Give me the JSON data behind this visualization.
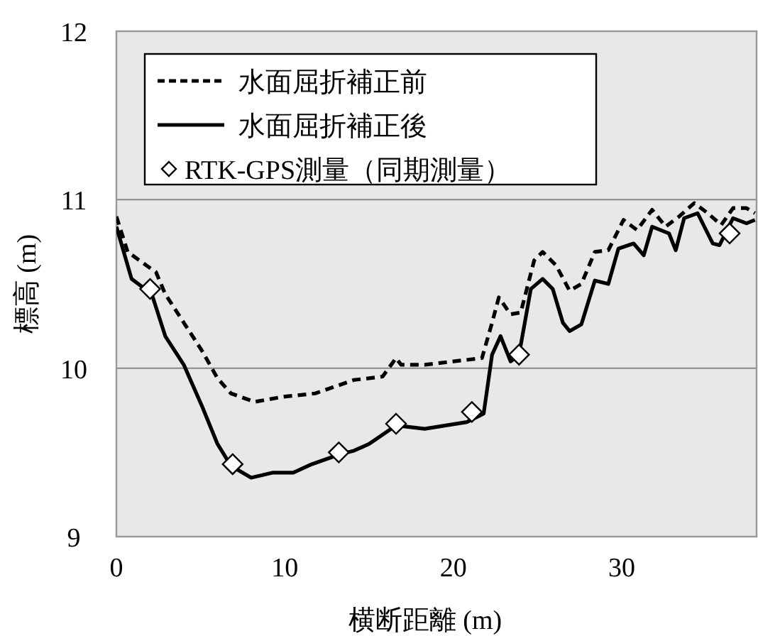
{
  "chart_data": {
    "type": "line",
    "xlabel": "横断距離 (m)",
    "ylabel": "標高 (m)",
    "xlim": [
      0,
      38
    ],
    "ylim": [
      9,
      12
    ],
    "xticks": [
      0,
      10,
      20,
      30
    ],
    "yticks": [
      9,
      10,
      11,
      12
    ],
    "grid": "y",
    "legend": "top left",
    "series": [
      {
        "name": "水面屈折補正前",
        "color": "#000000",
        "line_style": "dashed",
        "marker": "none",
        "x": [
          0,
          0.67,
          1.5,
          2.35,
          2.9,
          4.0,
          5.1,
          6.0,
          6.8,
          8.2,
          9.9,
          11.8,
          14.1,
          15.0,
          15.8,
          16.6,
          16.9,
          18.3,
          20.0,
          21.7,
          22.3,
          22.7,
          23.4,
          24.0,
          24.8,
          25.3,
          26.1,
          26.9,
          27.6,
          28.4,
          29.2,
          30.1,
          30.9,
          31.8,
          32.6,
          33.4,
          34.3,
          35.1,
          35.9,
          36.6,
          37.4,
          37.9
        ],
        "values": [
          10.9,
          10.69,
          10.63,
          10.57,
          10.44,
          10.27,
          10.1,
          9.94,
          9.85,
          9.8,
          9.83,
          9.85,
          9.93,
          9.94,
          9.95,
          10.06,
          10.02,
          10.02,
          10.04,
          10.06,
          10.27,
          10.42,
          10.32,
          10.33,
          10.64,
          10.69,
          10.61,
          10.46,
          10.5,
          10.69,
          10.7,
          10.88,
          10.82,
          10.94,
          10.84,
          10.9,
          10.98,
          10.92,
          10.85,
          10.95,
          10.95,
          10.92
        ]
      },
      {
        "name": "水面屈折補正後",
        "color": "#000000",
        "line_style": "solid",
        "marker": "none",
        "x": [
          0,
          0.9,
          2.1,
          2.9,
          4.0,
          5.1,
          6.0,
          6.8,
          8.0,
          9.3,
          10.5,
          11.6,
          13.3,
          14.1,
          15.0,
          16.6,
          18.3,
          20.8,
          21.8,
          22.3,
          22.8,
          23.4,
          23.9,
          24.6,
          25.3,
          25.9,
          26.5,
          26.9,
          27.6,
          28.4,
          29.2,
          29.8,
          30.7,
          31.3,
          31.8,
          32.8,
          33.2,
          33.7,
          34.5,
          35.4,
          35.8,
          36.6,
          37.4,
          37.9
        ],
        "values": [
          10.84,
          10.53,
          10.44,
          10.19,
          10.02,
          9.77,
          9.55,
          9.42,
          9.35,
          9.38,
          9.38,
          9.43,
          9.49,
          9.51,
          9.55,
          9.66,
          9.64,
          9.68,
          9.73,
          10.08,
          10.19,
          10.04,
          10.08,
          10.47,
          10.53,
          10.47,
          10.27,
          10.22,
          10.26,
          10.52,
          10.5,
          10.71,
          10.74,
          10.67,
          10.84,
          10.8,
          10.7,
          10.89,
          10.92,
          10.74,
          10.73,
          10.89,
          10.86,
          10.88
        ]
      },
      {
        "name": "RTK-GPS測量（同期測量）",
        "type": "scatter",
        "color": "#000000",
        "marker": "diamond",
        "x": [
          2.0,
          6.9,
          13.2,
          16.6,
          21.1,
          23.9,
          36.4
        ],
        "values": [
          10.47,
          9.43,
          9.5,
          9.67,
          9.74,
          10.08,
          10.8
        ]
      }
    ]
  }
}
